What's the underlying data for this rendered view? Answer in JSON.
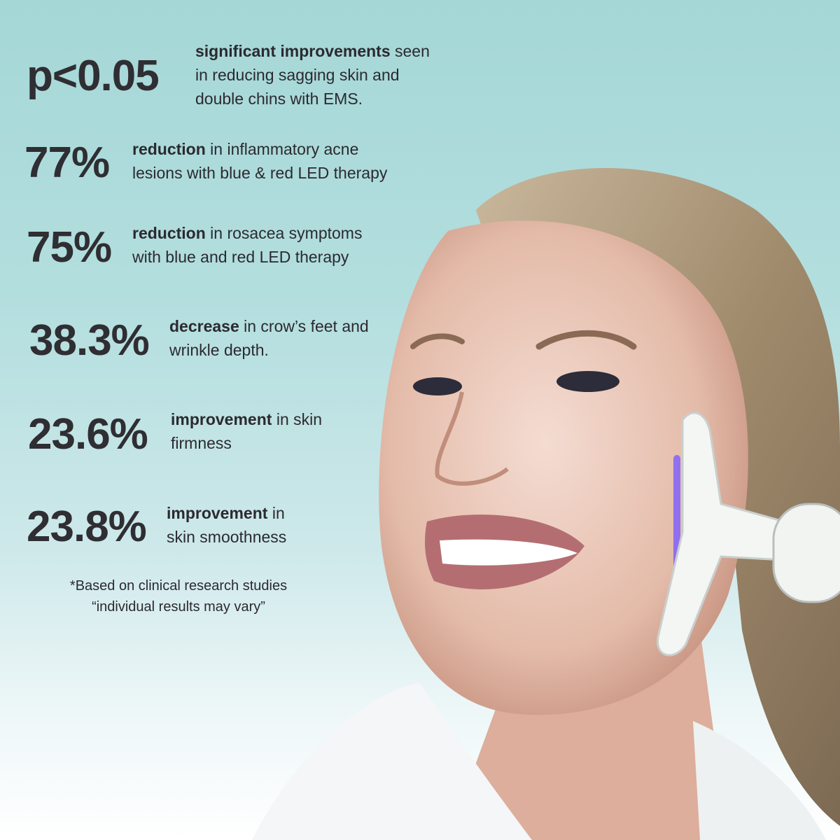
{
  "stats": [
    {
      "value": "p<0.05",
      "bold": "significant improvements",
      "line1_rest": " seen",
      "line2": "in reducing sagging skin and",
      "line3": "double chins with EMS."
    },
    {
      "value": "77%",
      "bold": "reduction",
      "line1_rest": " in inflammatory acne",
      "line2": "lesions with blue & red LED therapy"
    },
    {
      "value": "75%",
      "bold": "reduction",
      "line1_rest": " in rosacea symptoms",
      "line2": "with blue and red LED therapy"
    },
    {
      "value": "38.3%",
      "bold": "decrease",
      "line1_rest": " in crow’s feet and",
      "line2": "wrinkle depth."
    },
    {
      "value": "23.6%",
      "bold": "improvement",
      "line1_rest": " in skin",
      "line2": "firmness"
    },
    {
      "value": "23.8%",
      "bold": "improvement",
      "line1_rest": " in",
      "line2": "skin smoothness"
    }
  ],
  "footnote": {
    "line1": "*Based on clinical research studies",
    "line2": "“individual results may vary”"
  },
  "colors": {
    "background_top": "#a5d7d7",
    "text": "#2b2a2f",
    "device_light": "#7a5cff"
  }
}
